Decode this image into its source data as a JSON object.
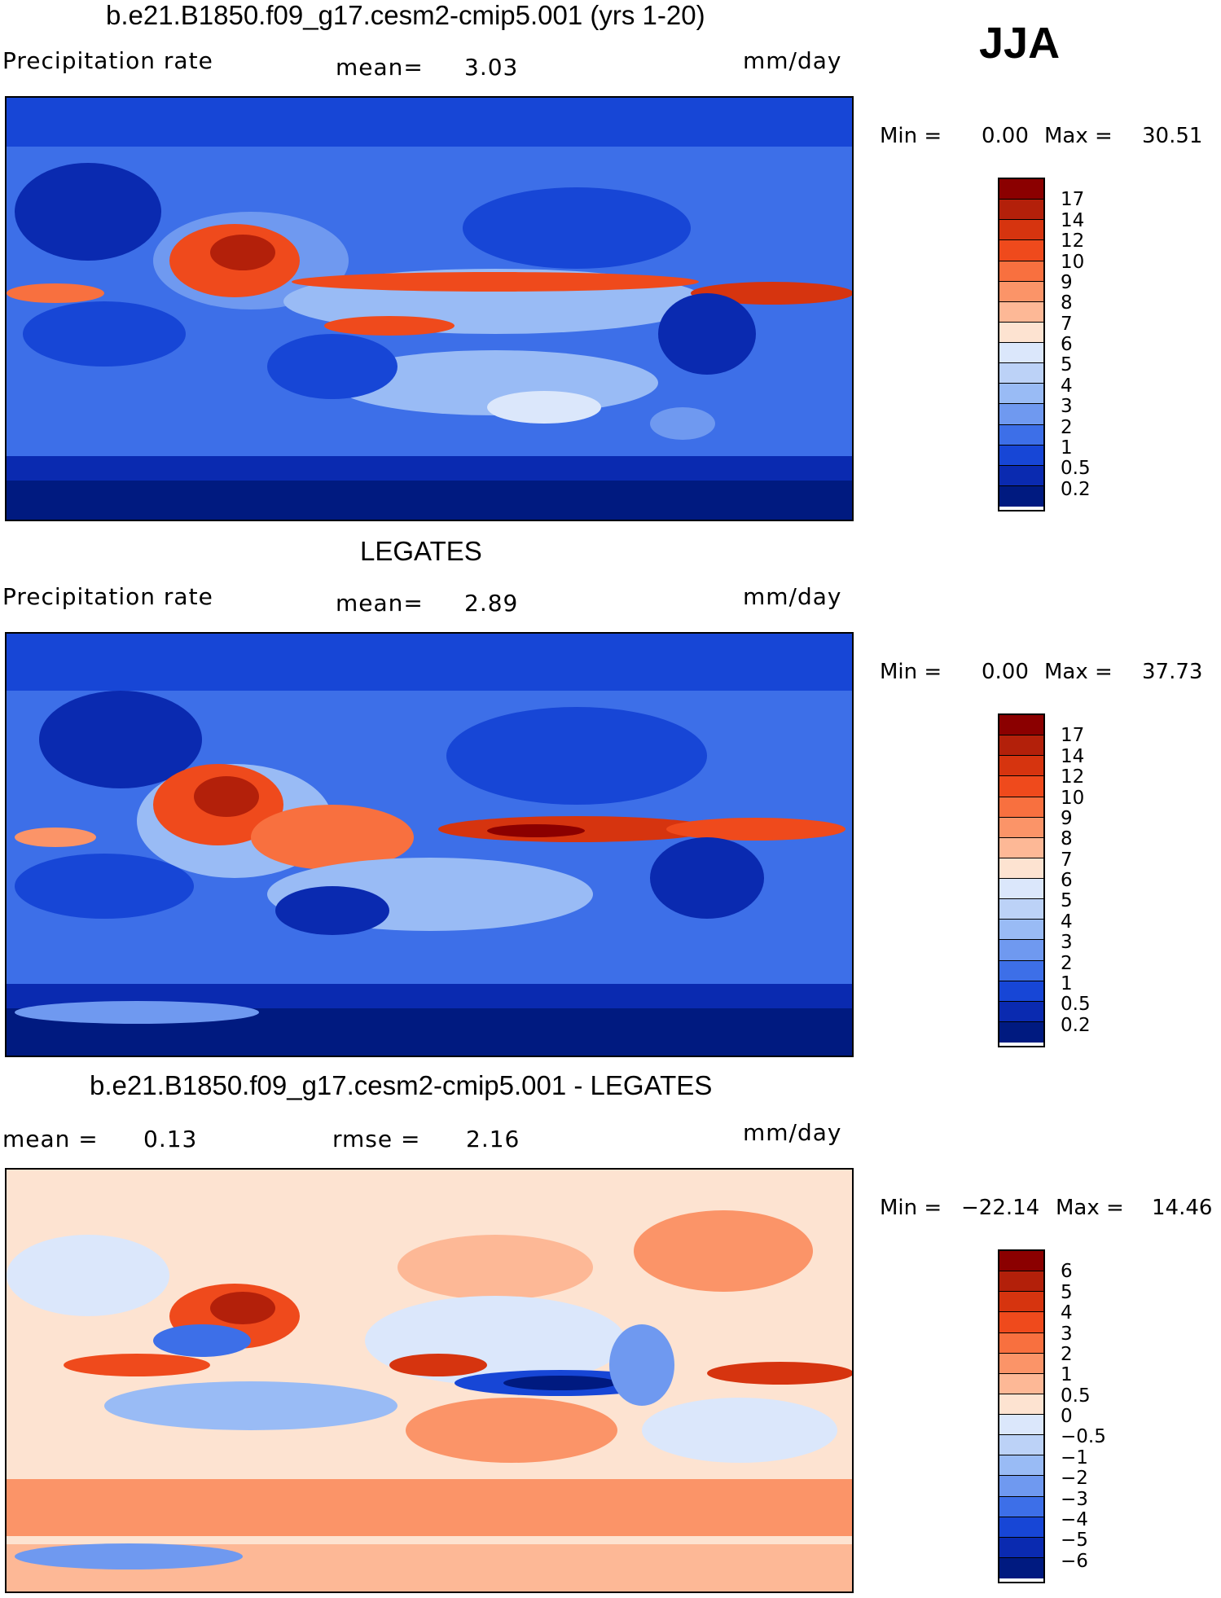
{
  "season": "JJA",
  "panels": [
    {
      "title": "b.e21.B1850.f09_g17.cesm2-cmip5.001 (yrs 1-20)",
      "variable": "Precipitation rate",
      "stat1_label": "mean=",
      "stat1_value": "3.03",
      "units": "mm/day",
      "min_label": "Min =",
      "min_value": "0.00",
      "max_label": "Max =",
      "max_value": "30.51",
      "colorbar": {
        "labels": [
          "17",
          "14",
          "12",
          "10",
          "9",
          "8",
          "7",
          "6",
          "5",
          "4",
          "3",
          "2",
          "1",
          "0.5",
          "0.2"
        ],
        "colors": [
          "#8b0000",
          "#b3200a",
          "#d6340f",
          "#ef4a1c",
          "#f8703f",
          "#fb9468",
          "#fdb896",
          "#fde3d1",
          "#dbe7fb",
          "#bcd2f7",
          "#99bbf5",
          "#6f99f0",
          "#3d6fe8",
          "#1746d6",
          "#0a2ab0",
          "#001a80"
        ]
      }
    },
    {
      "title": "LEGATES",
      "variable": "Precipitation rate",
      "stat1_label": "mean=",
      "stat1_value": "2.89",
      "units": "mm/day",
      "min_label": "Min =",
      "min_value": "0.00",
      "max_label": "Max =",
      "max_value": "37.73",
      "colorbar": {
        "labels": [
          "17",
          "14",
          "12",
          "10",
          "9",
          "8",
          "7",
          "6",
          "5",
          "4",
          "3",
          "2",
          "1",
          "0.5",
          "0.2"
        ],
        "colors": [
          "#8b0000",
          "#b3200a",
          "#d6340f",
          "#ef4a1c",
          "#f8703f",
          "#fb9468",
          "#fdb896",
          "#fde3d1",
          "#dbe7fb",
          "#bcd2f7",
          "#99bbf5",
          "#6f99f0",
          "#3d6fe8",
          "#1746d6",
          "#0a2ab0",
          "#001a80"
        ]
      }
    },
    {
      "title": "b.e21.B1850.f09_g17.cesm2-cmip5.001 - LEGATES",
      "stat1_label": "mean =",
      "stat1_value": "0.13",
      "stat2_label": "rmse =",
      "stat2_value": "2.16",
      "units": "mm/day",
      "min_label": "Min =",
      "min_value": "−22.14",
      "max_label": "Max =",
      "max_value": "14.46",
      "colorbar": {
        "labels": [
          "6",
          "5",
          "4",
          "3",
          "2",
          "1",
          "0.5",
          "0",
          "−0.5",
          "−1",
          "−2",
          "−3",
          "−4",
          "−5",
          "−6"
        ],
        "colors": [
          "#8b0000",
          "#b3200a",
          "#d6340f",
          "#ef4a1c",
          "#f8703f",
          "#fb9468",
          "#fdb896",
          "#fde3d1",
          "#dbe7fb",
          "#bcd2f7",
          "#99bbf5",
          "#6f99f0",
          "#3d6fe8",
          "#1746d6",
          "#0a2ab0",
          "#001a80"
        ]
      }
    }
  ]
}
